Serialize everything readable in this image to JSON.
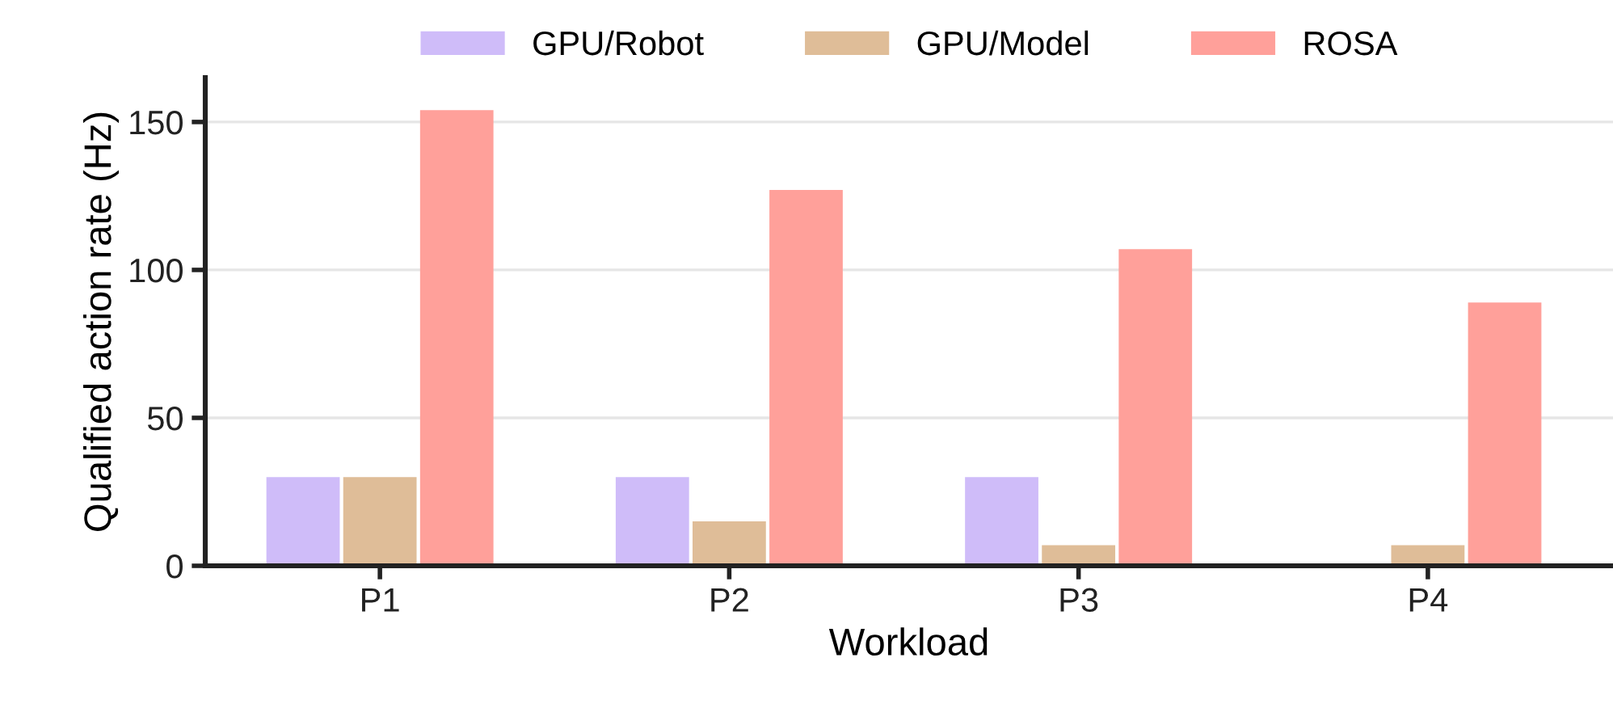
{
  "chart_data": {
    "type": "bar",
    "xlabel": "Workload",
    "ylabel": "Qualified action rate (Hz)",
    "categories": [
      "P1",
      "P2",
      "P3",
      "P4"
    ],
    "series": [
      {
        "name": "GPU/Robot",
        "color": "#cfbcf9",
        "values": [
          30,
          30,
          30,
          null
        ]
      },
      {
        "name": "GPU/Model",
        "color": "#dfbd98",
        "values": [
          30,
          15,
          7,
          7
        ]
      },
      {
        "name": "ROSA",
        "color": "#ffa09a",
        "values": [
          154,
          127,
          107,
          89
        ]
      }
    ],
    "ylim": [
      0,
      165
    ],
    "yticks": [
      0,
      50,
      100,
      150
    ],
    "grid": "y",
    "legend": "top"
  }
}
